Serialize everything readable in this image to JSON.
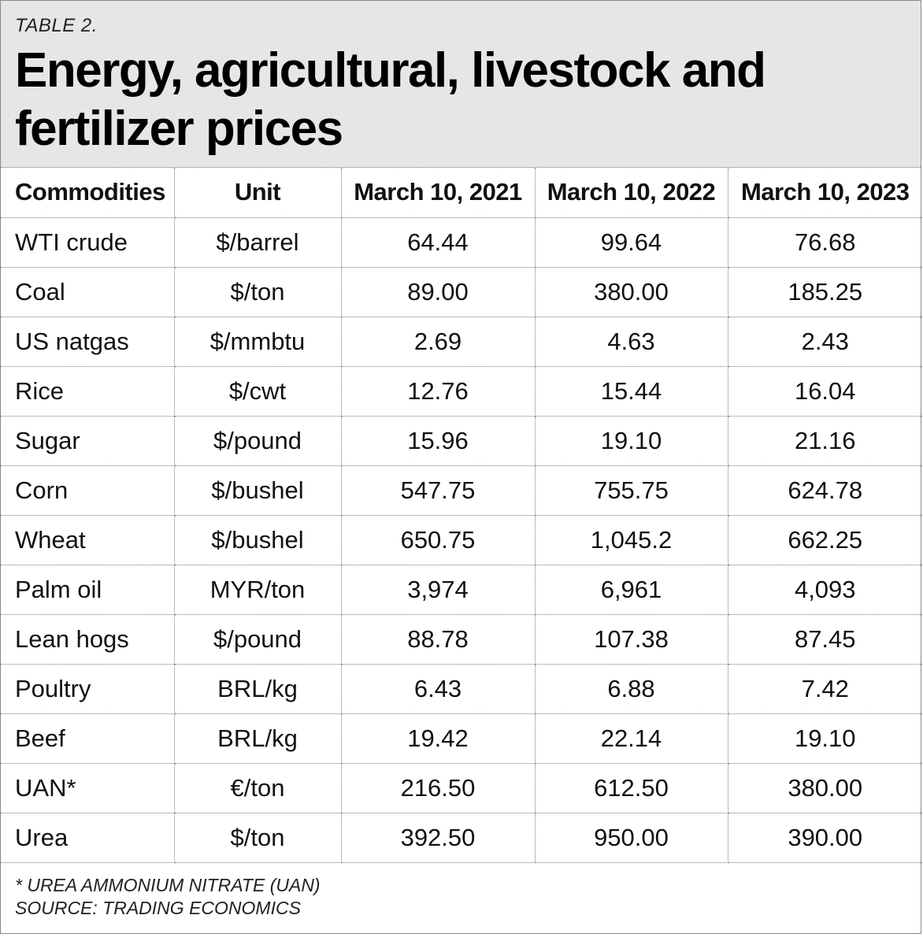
{
  "label": "TABLE 2.",
  "title_line1": "Energy, agricultural, livestock and",
  "title_line2": "fertilizer prices",
  "headers": [
    "Commodities",
    "Unit",
    "March 10, 2021",
    "March 10, 2022",
    "March 10, 2023"
  ],
  "rows": [
    [
      "WTI crude",
      "$/barrel",
      "64.44",
      "99.64",
      "76.68"
    ],
    [
      "Coal",
      "$/ton",
      "89.00",
      "380.00",
      "185.25"
    ],
    [
      "US natgas",
      "$/mmbtu",
      "2.69",
      "4.63",
      "2.43"
    ],
    [
      "Rice",
      "$/cwt",
      "12.76",
      "15.44",
      "16.04"
    ],
    [
      "Sugar",
      "$/pound",
      "15.96",
      "19.10",
      "21.16"
    ],
    [
      "Corn",
      "$/bushel",
      "547.75",
      "755.75",
      "624.78"
    ],
    [
      "Wheat",
      "$/bushel",
      "650.75",
      "1,045.2",
      "662.25"
    ],
    [
      "Palm oil",
      "MYR/ton",
      "3,974",
      "6,961",
      "4,093"
    ],
    [
      "Lean hogs",
      "$/pound",
      "88.78",
      "107.38",
      "87.45"
    ],
    [
      "Poultry",
      "BRL/kg",
      "6.43",
      "6.88",
      "7.42"
    ],
    [
      "Beef",
      "BRL/kg",
      "19.42",
      "22.14",
      "19.10"
    ],
    [
      "UAN*",
      "€/ton",
      "216.50",
      "612.50",
      "380.00"
    ],
    [
      "Urea",
      "$/ton",
      "392.50",
      "950.00",
      "390.00"
    ]
  ],
  "footnote_line1": "* UREA AMMONIUM NITRATE (UAN)",
  "footnote_line2": "SOURCE: TRADING ECONOMICS"
}
